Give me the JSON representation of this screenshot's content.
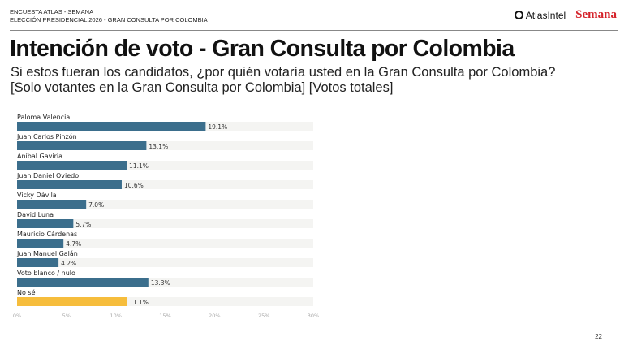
{
  "header": {
    "line1": "ENCUESTA ATLAS - SEMANA",
    "line2": "ELECCIÓN PRESIDENCIAL 2026 - GRAN CONSULTA POR COLOMBIA"
  },
  "logos": {
    "atlas": "AtlasIntel",
    "semana": "Semana"
  },
  "title": "Intención de voto - Gran Consulta por Colombia",
  "subtitle_line1": "Si estos fueran los candidatos, ¿por quién votaría usted en la Gran Consulta por Colombia?",
  "subtitle_line2": "[Solo votantes en la Gran Consulta por Colombia] [Votos totales]",
  "page_number": "22",
  "colors": {
    "bar": "#3b6e8c",
    "highlight": "#f6bd3c",
    "track": "#f4f4f2"
  },
  "chart_data": {
    "type": "bar",
    "orientation": "horizontal",
    "categories": [
      "Paloma Valencia",
      "Juan Carlos Pinzón",
      "Aníbal Gaviria",
      "Juan Daniel Oviedo",
      "Vicky Dávila",
      "David Luna",
      "Mauricio Cárdenas",
      "Juan Manuel Galán",
      "Voto blanco / nulo",
      "No sé"
    ],
    "values": [
      19.1,
      13.1,
      11.1,
      10.6,
      7.0,
      5.7,
      4.7,
      4.2,
      13.3,
      11.1
    ],
    "value_labels": [
      "19.1%",
      "13.1%",
      "11.1%",
      "10.6%",
      "7.0%",
      "5.7%",
      "4.7%",
      "4.2%",
      "13.3%",
      "11.1%"
    ],
    "highlight_index": 9,
    "xlim": [
      0,
      30
    ],
    "xticks": [
      0,
      5,
      10,
      15,
      20,
      25,
      30
    ],
    "xtick_labels": [
      "0%",
      "5%",
      "10%",
      "15%",
      "20%",
      "25%",
      "30%"
    ],
    "grid": false
  }
}
